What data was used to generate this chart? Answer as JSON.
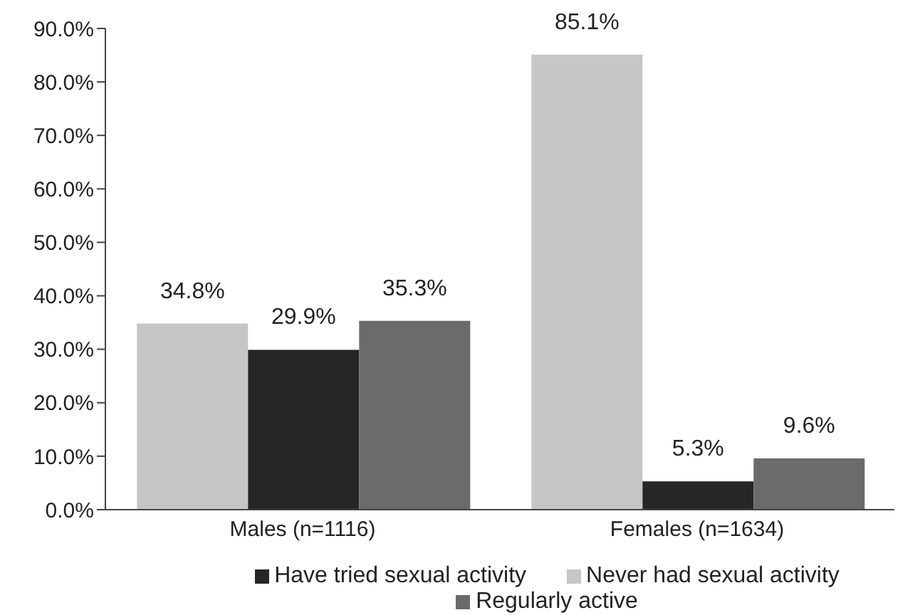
{
  "chart_data": {
    "type": "bar",
    "categories": [
      "Males (n=1116)",
      "Females (n=1634)"
    ],
    "series": [
      {
        "name": "Never had sexual activity",
        "color": "#c6c6c6",
        "values": [
          34.8,
          85.1
        ],
        "value_labels": [
          "34.8%",
          "85.1%"
        ]
      },
      {
        "name": "Have tried sexual activity",
        "color": "#262626",
        "values": [
          29.9,
          5.3
        ],
        "value_labels": [
          "29.9%",
          "5.3%"
        ]
      },
      {
        "name": "Regularly active",
        "color": "#6b6b6b",
        "values": [
          35.3,
          9.6
        ],
        "value_labels": [
          "35.3%",
          "9.6%"
        ]
      }
    ],
    "ylim": [
      0,
      90
    ],
    "yticks": [
      {
        "value": 0,
        "label": "0.0%"
      },
      {
        "value": 10,
        "label": "10.0%"
      },
      {
        "value": 20,
        "label": "20.0%"
      },
      {
        "value": 30,
        "label": "30.0%"
      },
      {
        "value": 40,
        "label": "40.0%"
      },
      {
        "value": 50,
        "label": "50.0%"
      },
      {
        "value": 60,
        "label": "60.0%"
      },
      {
        "value": 70,
        "label": "70.0%"
      },
      {
        "value": 80,
        "label": "80.0%"
      },
      {
        "value": 90,
        "label": "90.0%"
      }
    ],
    "grid": false,
    "legend": "bottom"
  }
}
